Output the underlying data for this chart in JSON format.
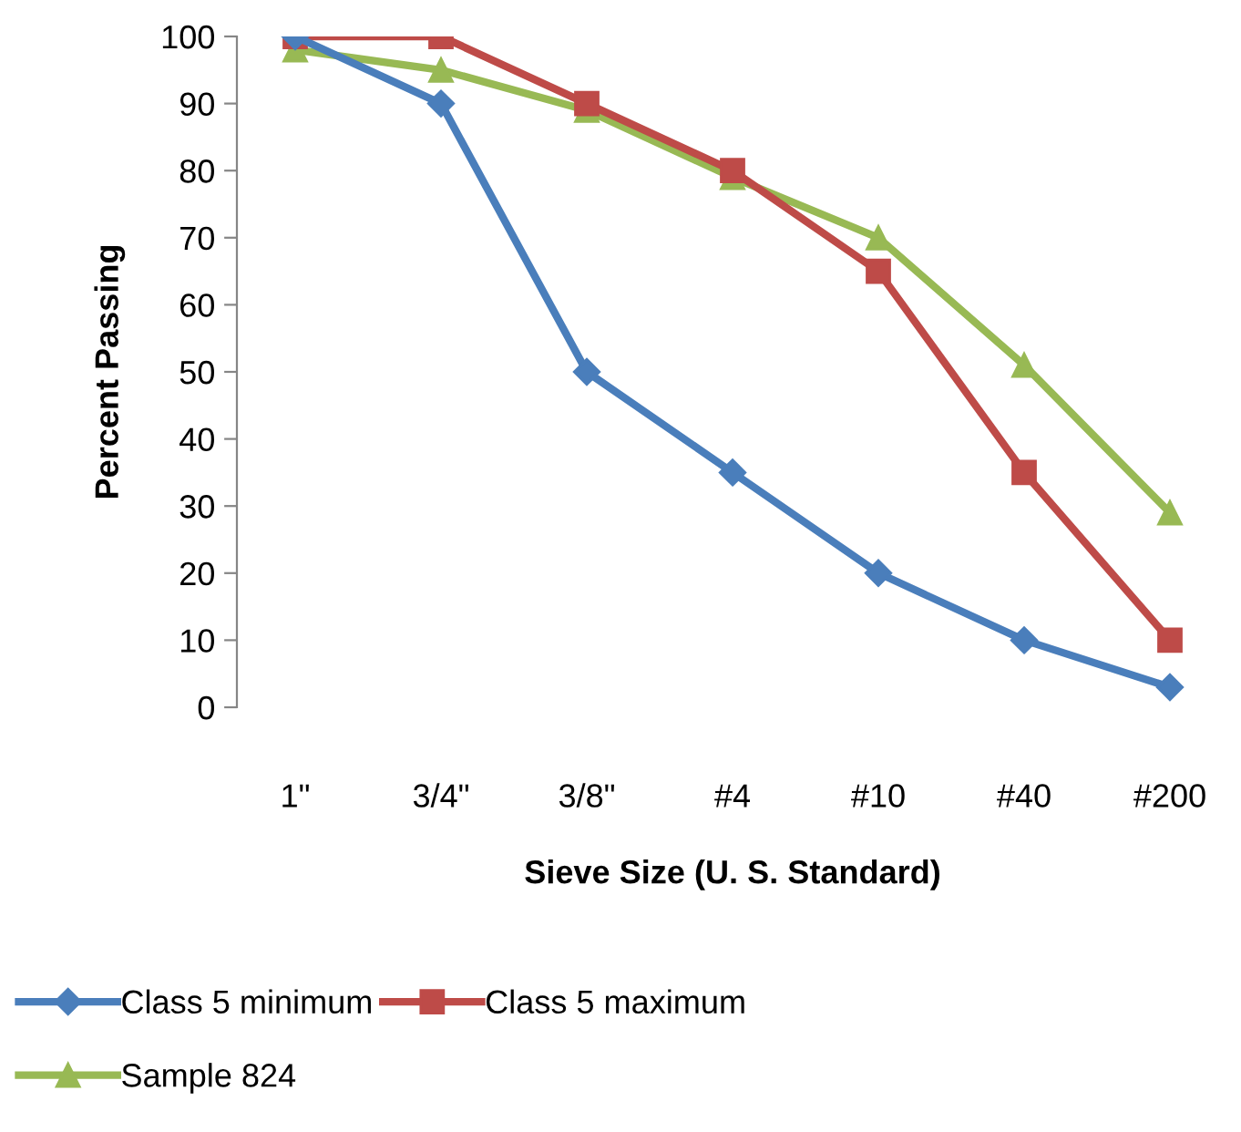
{
  "chart_data": {
    "type": "line",
    "xlabel": "Sieve Size (U. S. Standard)",
    "ylabel": "Percent Passing",
    "categories": [
      "1\"",
      "3/4\"",
      "3/8\"",
      "#4",
      "#10",
      "#40",
      "#200"
    ],
    "ylim": [
      0,
      100
    ],
    "yticks": [
      0,
      10,
      20,
      30,
      40,
      50,
      60,
      70,
      80,
      90,
      100
    ],
    "grid": false,
    "legend": "bottom",
    "series": [
      {
        "name": "Class 5 minimum",
        "color": "#4a7ebb",
        "marker": "diamond",
        "values": [
          100,
          90,
          50,
          35,
          20,
          10,
          3
        ]
      },
      {
        "name": "Class 5 maximum",
        "color": "#be4b48",
        "marker": "square",
        "values": [
          100,
          100,
          90,
          80,
          65,
          35,
          10
        ]
      },
      {
        "name": "Sample 824",
        "color": "#98b954",
        "marker": "triangle",
        "values": [
          98,
          95,
          89,
          79,
          70,
          51,
          29
        ]
      }
    ]
  }
}
